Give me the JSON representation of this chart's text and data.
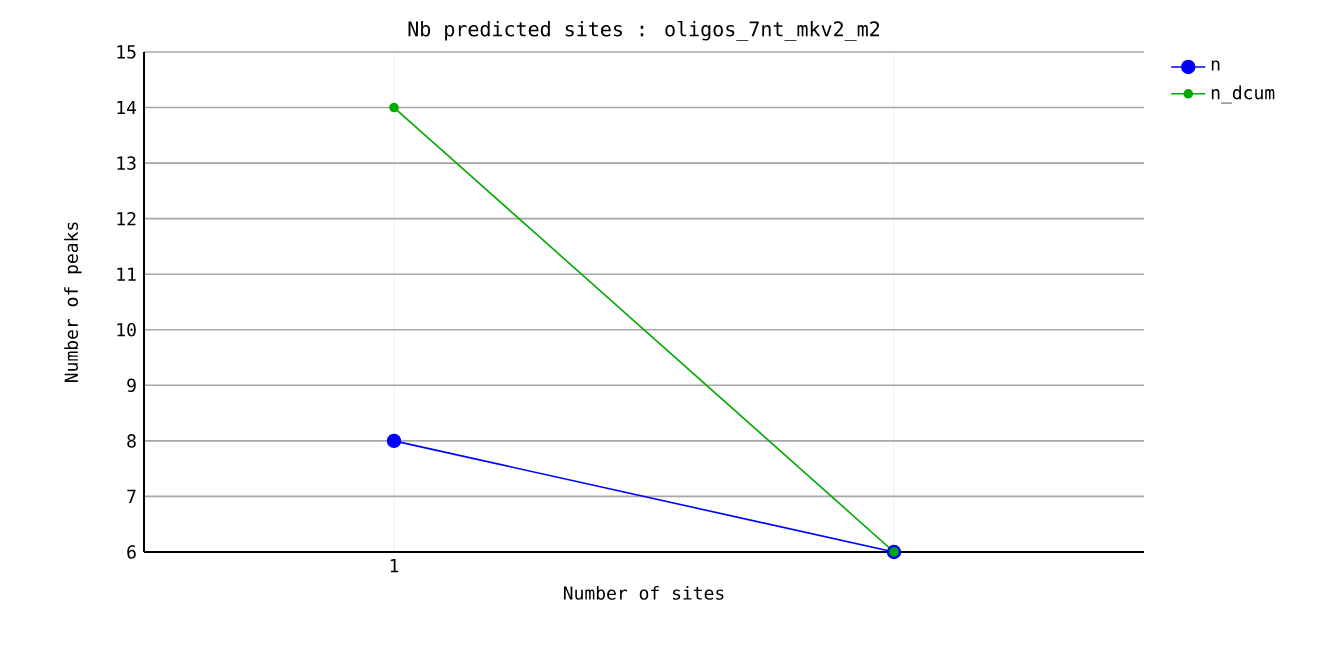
{
  "chart_data": {
    "type": "line",
    "title": "Nb predicted sites : oligos_7nt_mkv2_m2",
    "xlabel": "Number of sites",
    "ylabel": "Number of peaks",
    "categories": [
      "1",
      null
    ],
    "series": [
      {
        "name": "n",
        "color": "#0000ff",
        "values": [
          8,
          6
        ]
      },
      {
        "name": "n_dcum",
        "color": "#00aa00",
        "values": [
          14,
          6
        ]
      }
    ],
    "ylim": [
      6,
      15
    ],
    "yticks": [
      6,
      7,
      8,
      9,
      10,
      11,
      12,
      13,
      14,
      15
    ],
    "grid": true,
    "legend": "top right",
    "marker": "circle"
  }
}
